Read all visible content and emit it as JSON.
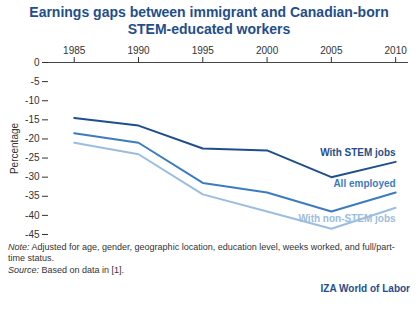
{
  "chart_data": {
    "type": "line",
    "title": "Earnings gaps between immigrant and Canadian-born STEM-educated workers",
    "y_label": "Percentage",
    "x": [
      1985,
      1990,
      1995,
      2000,
      2005,
      2010
    ],
    "xlim": [
      1983,
      2011
    ],
    "xticks": [
      1985,
      1990,
      1995,
      2000,
      2005,
      2010
    ],
    "ylim": [
      -45,
      0
    ],
    "yticks": [
      -45,
      -40,
      -35,
      -30,
      -25,
      -20,
      -15,
      -10,
      -5,
      0
    ],
    "grid": false,
    "legend": "right",
    "series": [
      {
        "name": "With STEM jobs",
        "color": "#1f4e8c",
        "values": [
          -14.5,
          -16.5,
          -22.5,
          -23,
          -30,
          -26
        ]
      },
      {
        "name": "All employed",
        "color": "#3b7cc0",
        "values": [
          -18.5,
          -21,
          -31.5,
          -34,
          -39,
          -34
        ]
      },
      {
        "name": "With non-STEM jobs",
        "color": "#9bbde0",
        "values": [
          -21,
          -24,
          -34.5,
          -39,
          -43.5,
          -38
        ]
      }
    ],
    "note": "Note: Adjusted for age, gender, geographic location, education level, weeks worked, and full/part-time status.",
    "source": "Source: Based on data in [1].",
    "logo": "IZA World of Labor"
  }
}
